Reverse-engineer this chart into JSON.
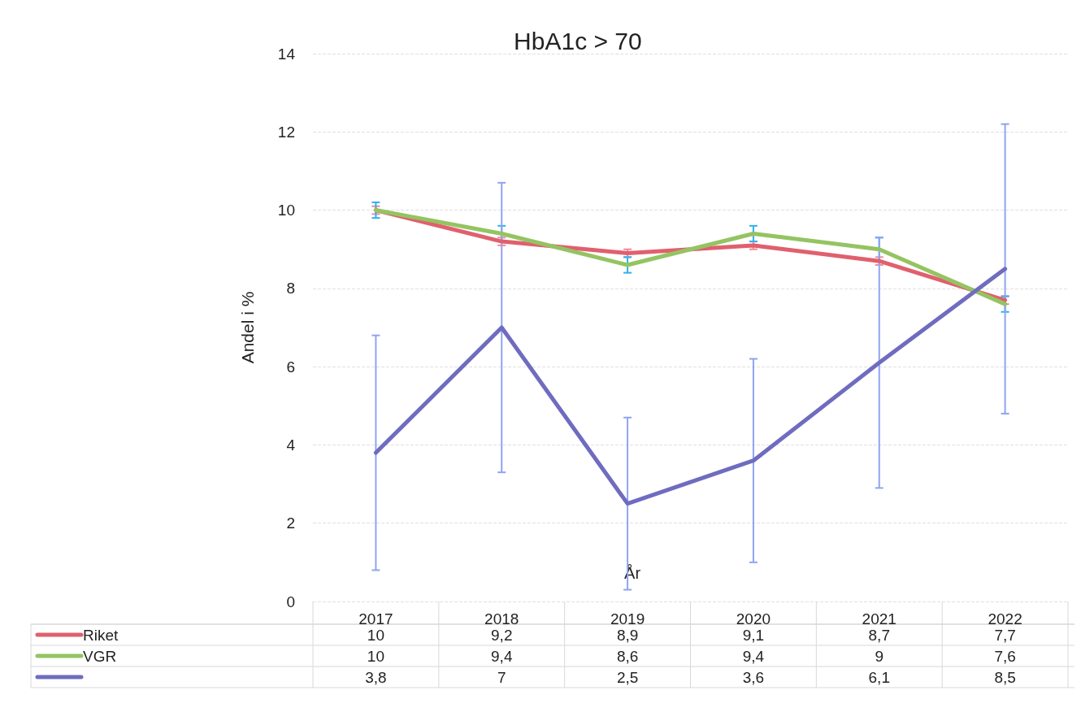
{
  "chart_data": {
    "type": "line",
    "title": "HbA1c > 70",
    "xlabel": "År",
    "ylabel": "Andel i %",
    "categories": [
      "2017",
      "2018",
      "2019",
      "2020",
      "2021",
      "2022"
    ],
    "ylim": [
      0,
      14
    ],
    "yticks": [
      0,
      2,
      4,
      6,
      8,
      10,
      12,
      14
    ],
    "grid": "y",
    "legend": "bottom left",
    "marker": "none",
    "line_style": "solid",
    "series": [
      {
        "name": "Riket",
        "color": "#e0606e",
        "values": [
          10,
          9.2,
          8.9,
          9.1,
          8.7,
          7.7
        ],
        "value_labels": [
          "10",
          "9,2",
          "8,9",
          "9,1",
          "8,7",
          "7,7"
        ],
        "errors": [
          0.1,
          0.1,
          0.1,
          0.1,
          0.1,
          0.1
        ]
      },
      {
        "name": "VGR",
        "color": "#94c462",
        "values": [
          10,
          9.4,
          8.6,
          9.4,
          9,
          7.6
        ],
        "value_labels": [
          "10",
          "9,4",
          "8,6",
          "9,4",
          "9",
          "7,6"
        ],
        "errors": [
          0.2,
          0.2,
          0.2,
          0.2,
          0.3,
          0.2
        ]
      },
      {
        "color": "#6f6cc0",
        "values": [
          3.8,
          7,
          2.5,
          3.6,
          6.1,
          8.5
        ],
        "value_labels": [
          "3,8",
          "7",
          "2,5",
          "3,6",
          "6,1",
          "8,5"
        ],
        "errors": [
          [
            0.8,
            6.8
          ],
          [
            3.3,
            10.7
          ],
          [
            0.3,
            4.7
          ],
          [
            1.0,
            6.2
          ],
          [
            2.9,
            9.3
          ],
          [
            4.8,
            12.2
          ]
        ]
      }
    ]
  }
}
